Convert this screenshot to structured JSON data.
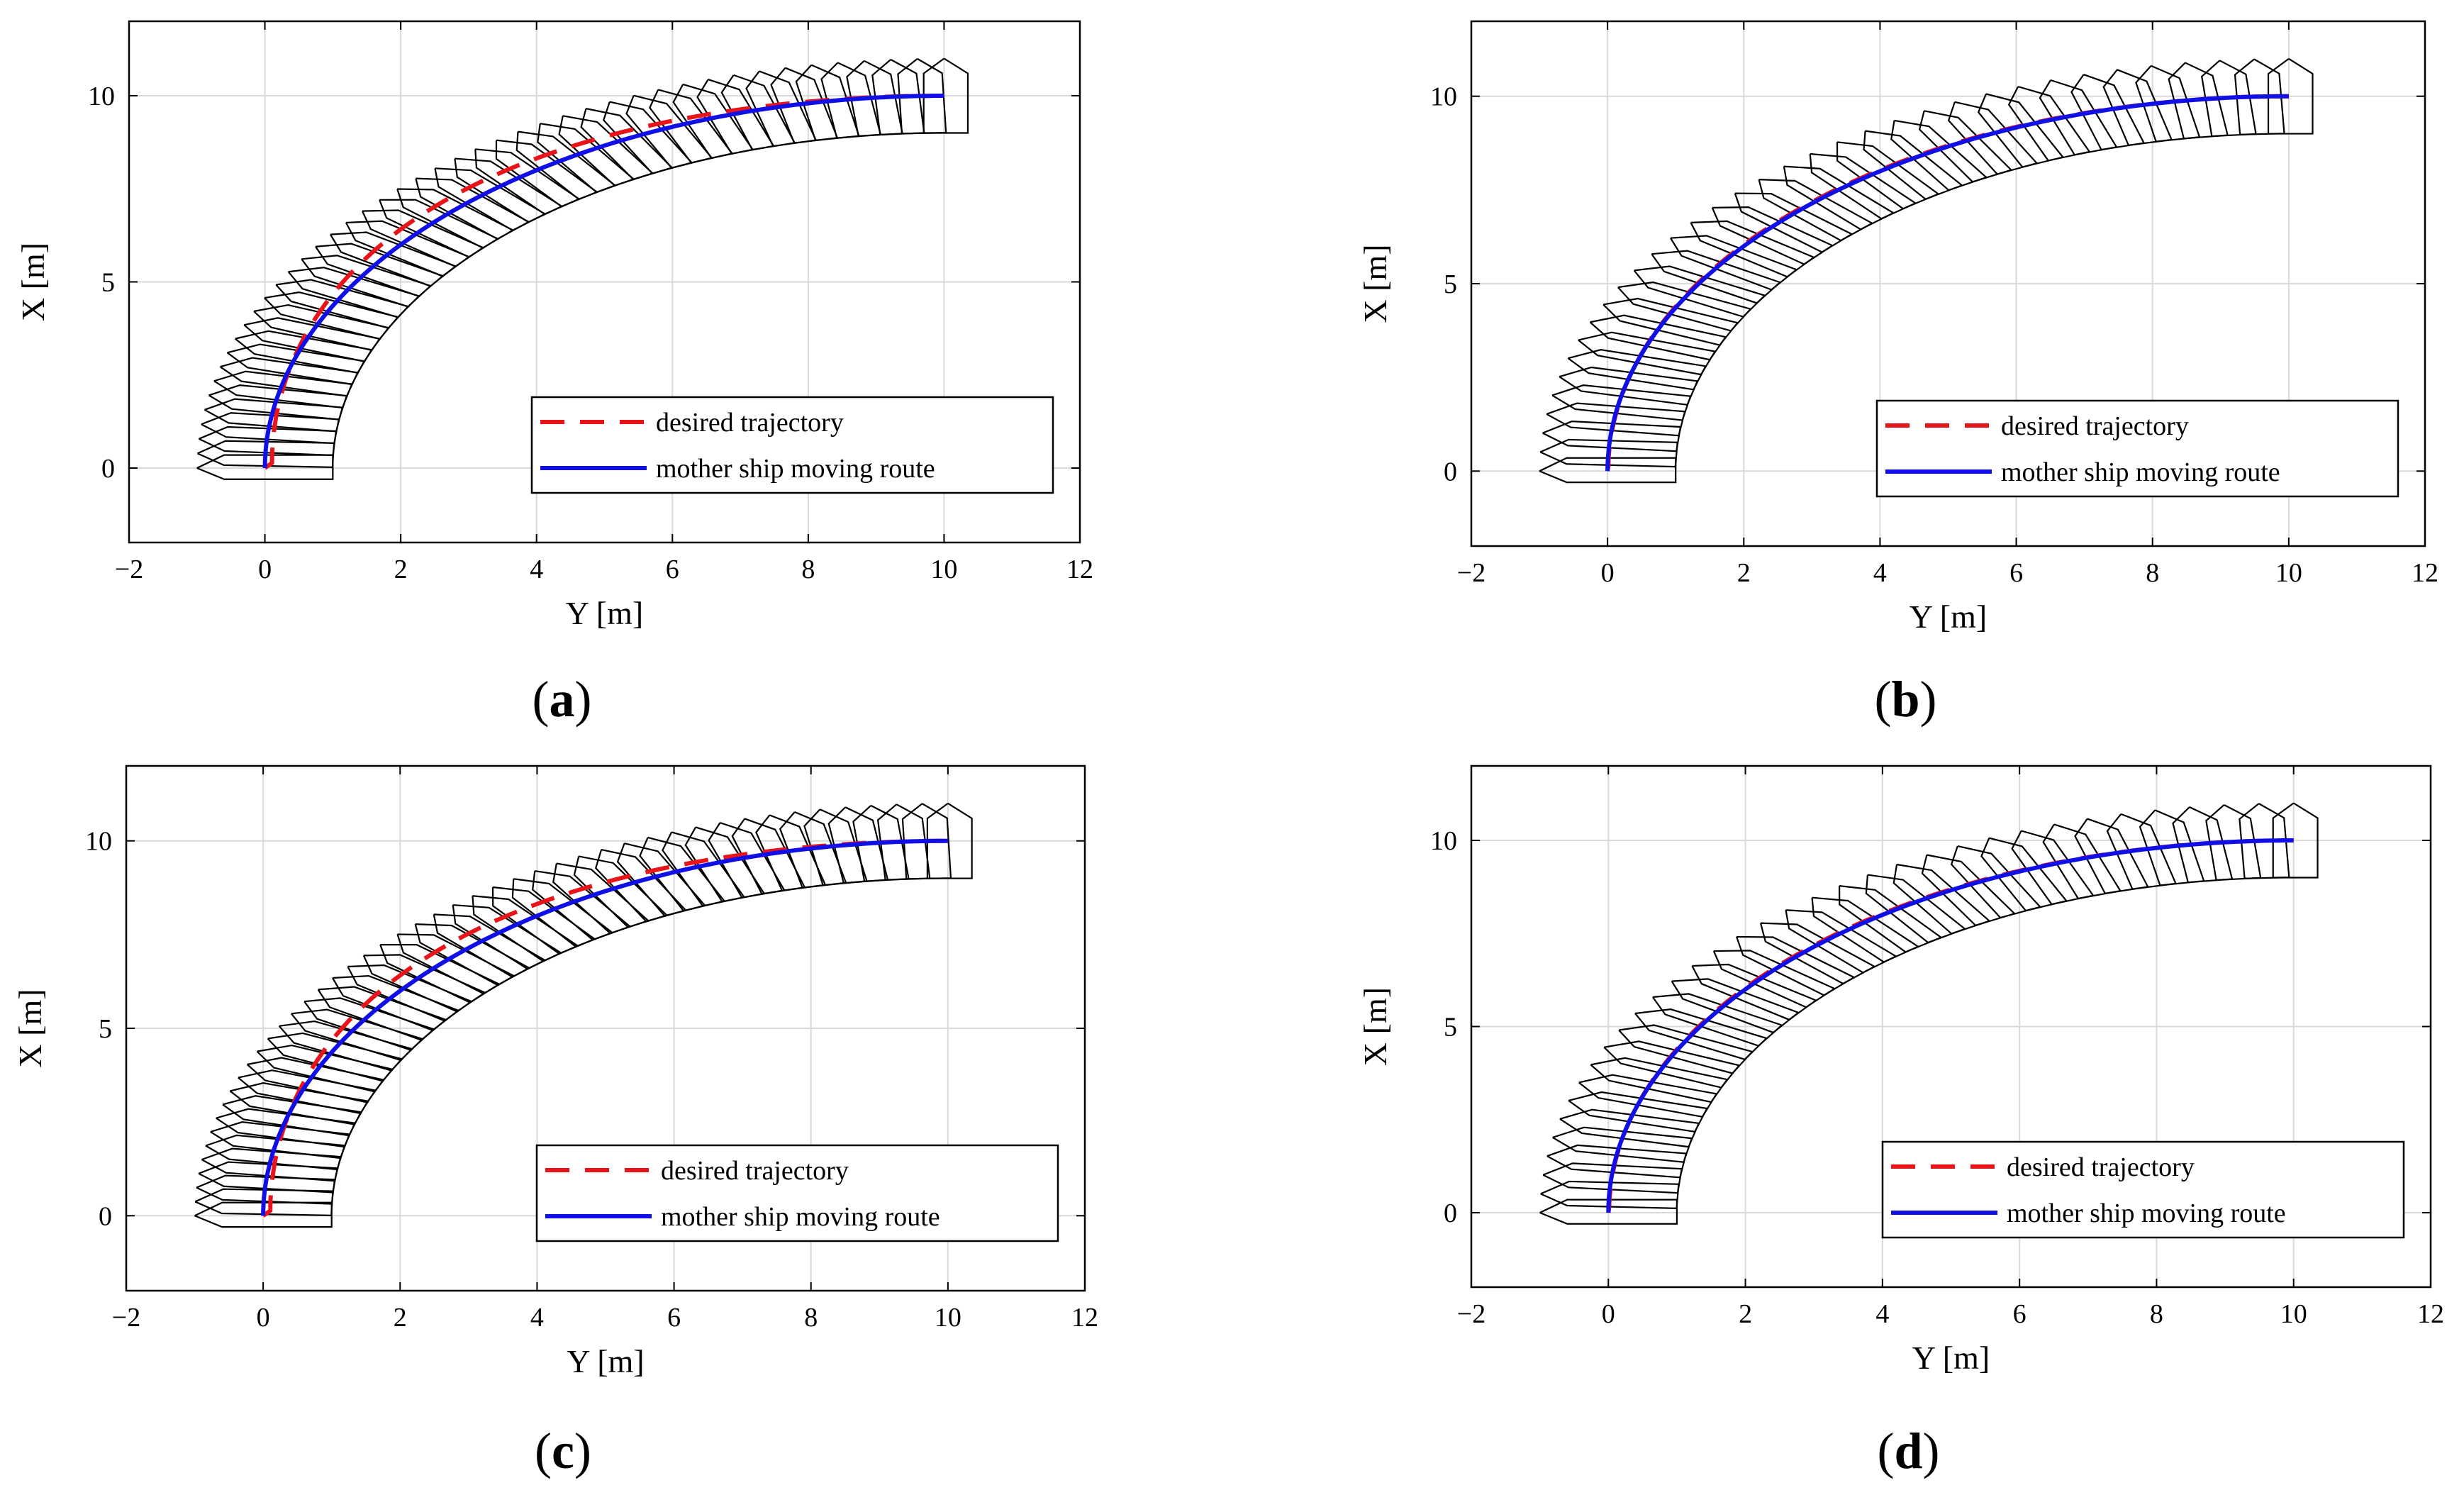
{
  "colors": {
    "desired": "#e8141a",
    "route": "#1010e6",
    "ship": "#000000",
    "grid": "#d9d9d9",
    "axes": "#000000"
  },
  "chart_data": [
    {
      "type": "line",
      "panel_label": "a",
      "xlabel": "Y [m]",
      "ylabel": "X [m]",
      "xlim": [
        -2,
        12
      ],
      "ylim": [
        -2,
        12
      ],
      "xticks": [
        "−2",
        "0",
        "2",
        "4",
        "6",
        "8",
        "10",
        "12"
      ],
      "xtick_values": [
        -2,
        0,
        2,
        4,
        6,
        8,
        10,
        12
      ],
      "yticks": [
        "0",
        "5",
        "10"
      ],
      "ytick_values": [
        0,
        5,
        10
      ],
      "grid": true,
      "legend_position": "bottom-right",
      "series": [
        {
          "name": "desired trajectory",
          "style": "dashed",
          "color": "red",
          "lag": 0.3
        },
        {
          "name": "mother ship moving route",
          "style": "solid",
          "color": "blue",
          "lag": 0.0
        }
      ],
      "ship_snapshots": 44
    },
    {
      "type": "line",
      "panel_label": "b",
      "xlabel": "Y [m]",
      "ylabel": "X [m]",
      "xlim": [
        -2,
        12
      ],
      "ylim": [
        -2,
        12
      ],
      "xticks": [
        "−2",
        "0",
        "2",
        "4",
        "6",
        "8",
        "10",
        "12"
      ],
      "xtick_values": [
        -2,
        0,
        2,
        4,
        6,
        8,
        10,
        12
      ],
      "yticks": [
        "0",
        "5",
        "10"
      ],
      "ytick_values": [
        0,
        5,
        10
      ],
      "grid": true,
      "legend_position": "bottom-right",
      "series": [
        {
          "name": "desired trajectory",
          "style": "dashed",
          "color": "red",
          "lag": 0.03
        },
        {
          "name": "mother ship moving route",
          "style": "solid",
          "color": "blue",
          "lag": 0.0
        }
      ],
      "ship_snapshots": 34
    },
    {
      "type": "line",
      "panel_label": "c",
      "xlabel": "Y [m]",
      "ylabel": "X [m]",
      "xlim": [
        -2,
        12
      ],
      "ylim": [
        -2,
        12
      ],
      "xticks": [
        "−2",
        "0",
        "2",
        "4",
        "6",
        "8",
        "10",
        "12"
      ],
      "xtick_values": [
        -2,
        0,
        2,
        4,
        6,
        8,
        10,
        12
      ],
      "yticks": [
        "0",
        "5",
        "10"
      ],
      "ytick_values": [
        0,
        5,
        10
      ],
      "grid": true,
      "legend_position": "bottom-right",
      "series": [
        {
          "name": "desired trajectory",
          "style": "dashed",
          "color": "red",
          "lag": 0.3
        },
        {
          "name": "mother ship moving route",
          "style": "solid",
          "color": "blue",
          "lag": 0.0
        }
      ],
      "ship_snapshots": 46
    },
    {
      "type": "line",
      "panel_label": "d",
      "xlabel": "Y [m]",
      "ylabel": "X [m]",
      "xlim": [
        -2,
        12
      ],
      "ylim": [
        -2,
        12
      ],
      "xticks": [
        "−2",
        "0",
        "2",
        "4",
        "6",
        "8",
        "10",
        "12"
      ],
      "xtick_values": [
        -2,
        0,
        2,
        4,
        6,
        8,
        10,
        12
      ],
      "yticks": [
        "0",
        "5",
        "10"
      ],
      "ytick_values": [
        0,
        5,
        10
      ],
      "grid": true,
      "legend_position": "bottom-right",
      "series": [
        {
          "name": "desired trajectory",
          "style": "dashed",
          "color": "red",
          "lag": 0.03
        },
        {
          "name": "mother ship moving route",
          "style": "solid",
          "color": "blue",
          "lag": 0.0
        }
      ],
      "ship_snapshots": 34
    }
  ]
}
